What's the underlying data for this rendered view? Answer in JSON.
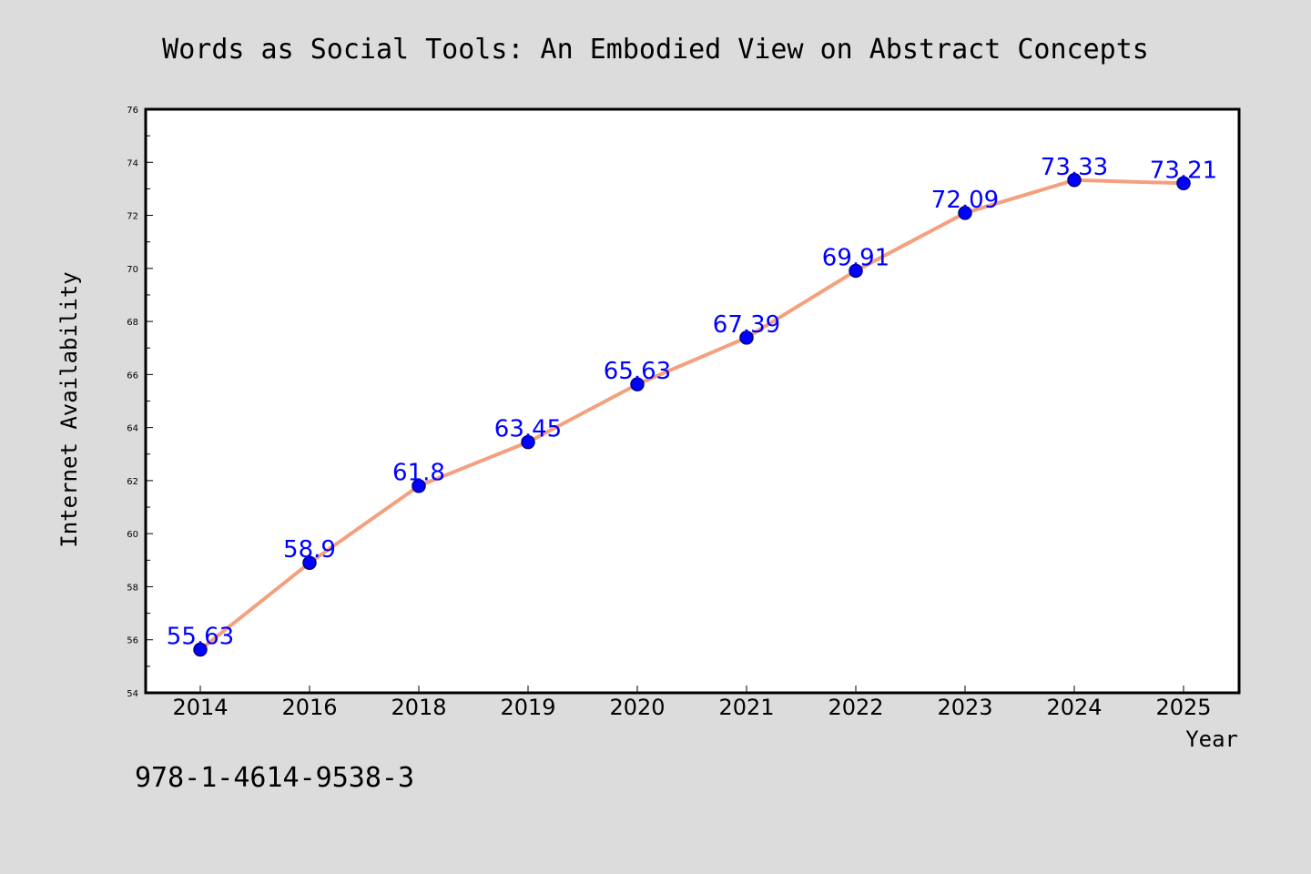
{
  "chart_data": {
    "type": "line",
    "title": "Words as Social Tools: An Embodied View on Abstract Concepts",
    "xlabel": "Year",
    "ylabel": "Internet Availability",
    "categories": [
      "2014",
      "2016",
      "2018",
      "2019",
      "2020",
      "2021",
      "2022",
      "2023",
      "2024",
      "2025"
    ],
    "series": [
      {
        "values": [
          55.63,
          58.9,
          61.8,
          63.45,
          65.63,
          67.39,
          69.91,
          72.09,
          73.33,
          73.21
        ],
        "data_labels": [
          "55.63",
          "58.9",
          "61.8",
          "63.45",
          "65.63",
          "67.39",
          "69.91",
          "72.09",
          "73.33",
          "73.21"
        ]
      }
    ],
    "ylim": [
      54,
      76
    ],
    "yticks": [
      54,
      56,
      58,
      60,
      62,
      64,
      66,
      68,
      70,
      72,
      74,
      76
    ],
    "grid": false,
    "legend": "none",
    "colors": {
      "line": "#f4a07f",
      "marker_fill": "#0000ff",
      "marker_edge": "#000080",
      "data_label": "#0000ff",
      "background": "#dcdcdc",
      "plot_area": "#ffffff"
    }
  },
  "footer": {
    "isbn": "978-1-4614-9538-3"
  }
}
